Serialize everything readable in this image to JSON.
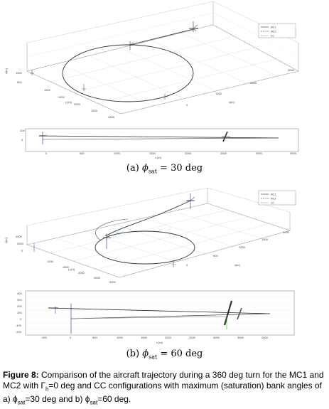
{
  "panel_a": {
    "iso_yticks": [
      "1000",
      "500"
    ],
    "iso_xticks": [
      "1000",
      "1500",
      "2000",
      "1500",
      "1000"
    ],
    "iso_rticks": [
      "3000",
      "2000",
      "1000",
      "0"
    ],
    "axis_labels": {
      "y": "y [m]",
      "x": "x[m]",
      "z": "z[m]"
    },
    "legend": [
      "MC1",
      "MC2",
      "CC"
    ],
    "side_yticks": [
      "100",
      "0"
    ],
    "side_xticks": [
      "0",
      "500",
      "1000",
      "1500",
      "2000",
      "2500",
      "3000",
      "3500"
    ],
    "side_xlabel": "x [m]",
    "caption": {
      "label": "(a)",
      "var": "ϕ",
      "sub": "sat",
      "value": "= 30 deg"
    }
  },
  "panel_b": {
    "iso_yticks": [
      "4000",
      "2000",
      "0"
    ],
    "iso_xticks": [
      "1000",
      "1500",
      "2000",
      "2500",
      "3000"
    ],
    "iso_rticks": [
      "2000",
      "1500",
      "1000",
      "500",
      "0"
    ],
    "axis_labels": {
      "y": "y [m]",
      "x": "x[m]",
      "z": "z[m]"
    },
    "legend": [
      "MC1",
      "MC2",
      "CC"
    ],
    "side_yticks": [
      "400",
      "300",
      "200",
      "100",
      "0",
      "-100",
      "-200"
    ],
    "side_xticks": [
      "-500",
      "0",
      "500",
      "1000",
      "1500",
      "2000",
      "2500",
      "3000",
      "3500",
      "4000"
    ],
    "side_xlabel": "x [m]",
    "caption": {
      "label": "(b)",
      "var": "ϕ",
      "sub": "sat",
      "value": "= 60 deg"
    }
  },
  "figure_caption": {
    "label": "Figure 8:",
    "text_1": " Comparison of the aircraft trajectory during a 360 deg turn for the MC1 and MC2 with Γ",
    "sub_h": "h",
    "text_2": "=0 deg and CC configurations with maximum (saturation) bank angles of a) ϕ",
    "sub_sat_1": "sat",
    "text_3": "=30 deg and b) ϕ",
    "sub_sat_2": "sat",
    "text_4": "=60 deg."
  }
}
